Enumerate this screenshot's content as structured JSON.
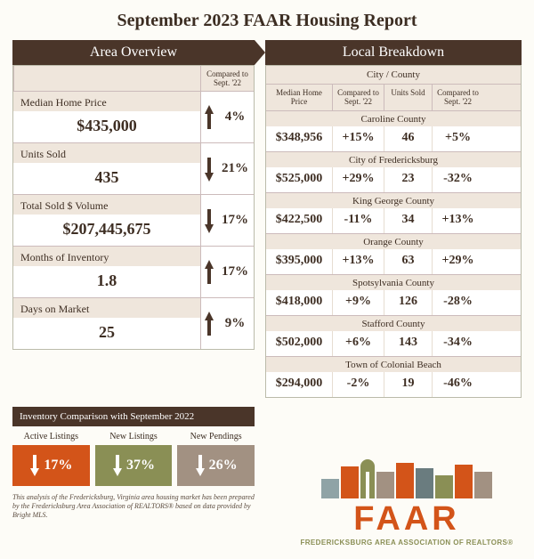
{
  "title": "September 2023 FAAR Housing Report",
  "colors": {
    "dark_brown": "#4a3529",
    "tan": "#efe6dc",
    "orange": "#d35419",
    "olive": "#8a8f55",
    "taupe": "#a29182"
  },
  "area_overview": {
    "banner": "Area Overview",
    "compare_header": "Compared to Sept. '22",
    "rows": [
      {
        "label": "Median Home Price",
        "value": "$435,000",
        "direction": "up",
        "pct": "4%"
      },
      {
        "label": "Units Sold",
        "value": "435",
        "direction": "down",
        "pct": "21%"
      },
      {
        "label": "Total Sold $ Volume",
        "value": "$207,445,675",
        "direction": "down",
        "pct": "17%"
      },
      {
        "label": "Months of Inventory",
        "value": "1.8",
        "direction": "up",
        "pct": "17%"
      },
      {
        "label": "Days on Market",
        "value": "25",
        "direction": "up",
        "pct": "9%"
      }
    ]
  },
  "local_breakdown": {
    "banner": "Local Breakdown",
    "superheader": "City / County",
    "headers": [
      "Median Home Price",
      "Compared to Sept. '22",
      "Units Sold",
      "Compared to Sept. '22"
    ],
    "groups": [
      {
        "name": "Caroline County",
        "cells": [
          "$348,956",
          "+15%",
          "46",
          "+5%"
        ]
      },
      {
        "name": "City of Fredericksburg",
        "cells": [
          "$525,000",
          "+29%",
          "23",
          "-32%"
        ]
      },
      {
        "name": "King George County",
        "cells": [
          "$422,500",
          "-11%",
          "34",
          "+13%"
        ]
      },
      {
        "name": "Orange County",
        "cells": [
          "$395,000",
          "+13%",
          "63",
          "+29%"
        ]
      },
      {
        "name": "Spotsylvania County",
        "cells": [
          "$418,000",
          "+9%",
          "126",
          "-28%"
        ]
      },
      {
        "name": "Stafford County",
        "cells": [
          "$502,000",
          "+6%",
          "143",
          "-34%"
        ]
      },
      {
        "name": "Town of Colonial Beach",
        "cells": [
          "$294,000",
          "-2%",
          "19",
          "-46%"
        ]
      }
    ]
  },
  "inventory": {
    "banner": "Inventory Comparison with September 2022",
    "cards": [
      {
        "label": "Active Listings",
        "pct": "17%",
        "color": "#d35419"
      },
      {
        "label": "New Listings",
        "pct": "37%",
        "color": "#8a8f55"
      },
      {
        "label": "New Pendings",
        "pct": "26%",
        "color": "#a29182"
      }
    ]
  },
  "footnote": "This analysis of the Fredericksburg, Virginia area housing market has been prepared by the Fredericksburg Area Association of REALTORS® based on data provided by Bright MLS.",
  "logo": {
    "text": "FAAR",
    "sub": "FREDERICKSBURG AREA ASSOCIATION OF REALTORS®",
    "shape_colors": [
      "#8fa3a6",
      "#d35419",
      "#8a8f55",
      "#a29182",
      "#d35419",
      "#6a7c7f",
      "#8a8f55",
      "#d35419",
      "#a29182"
    ]
  }
}
